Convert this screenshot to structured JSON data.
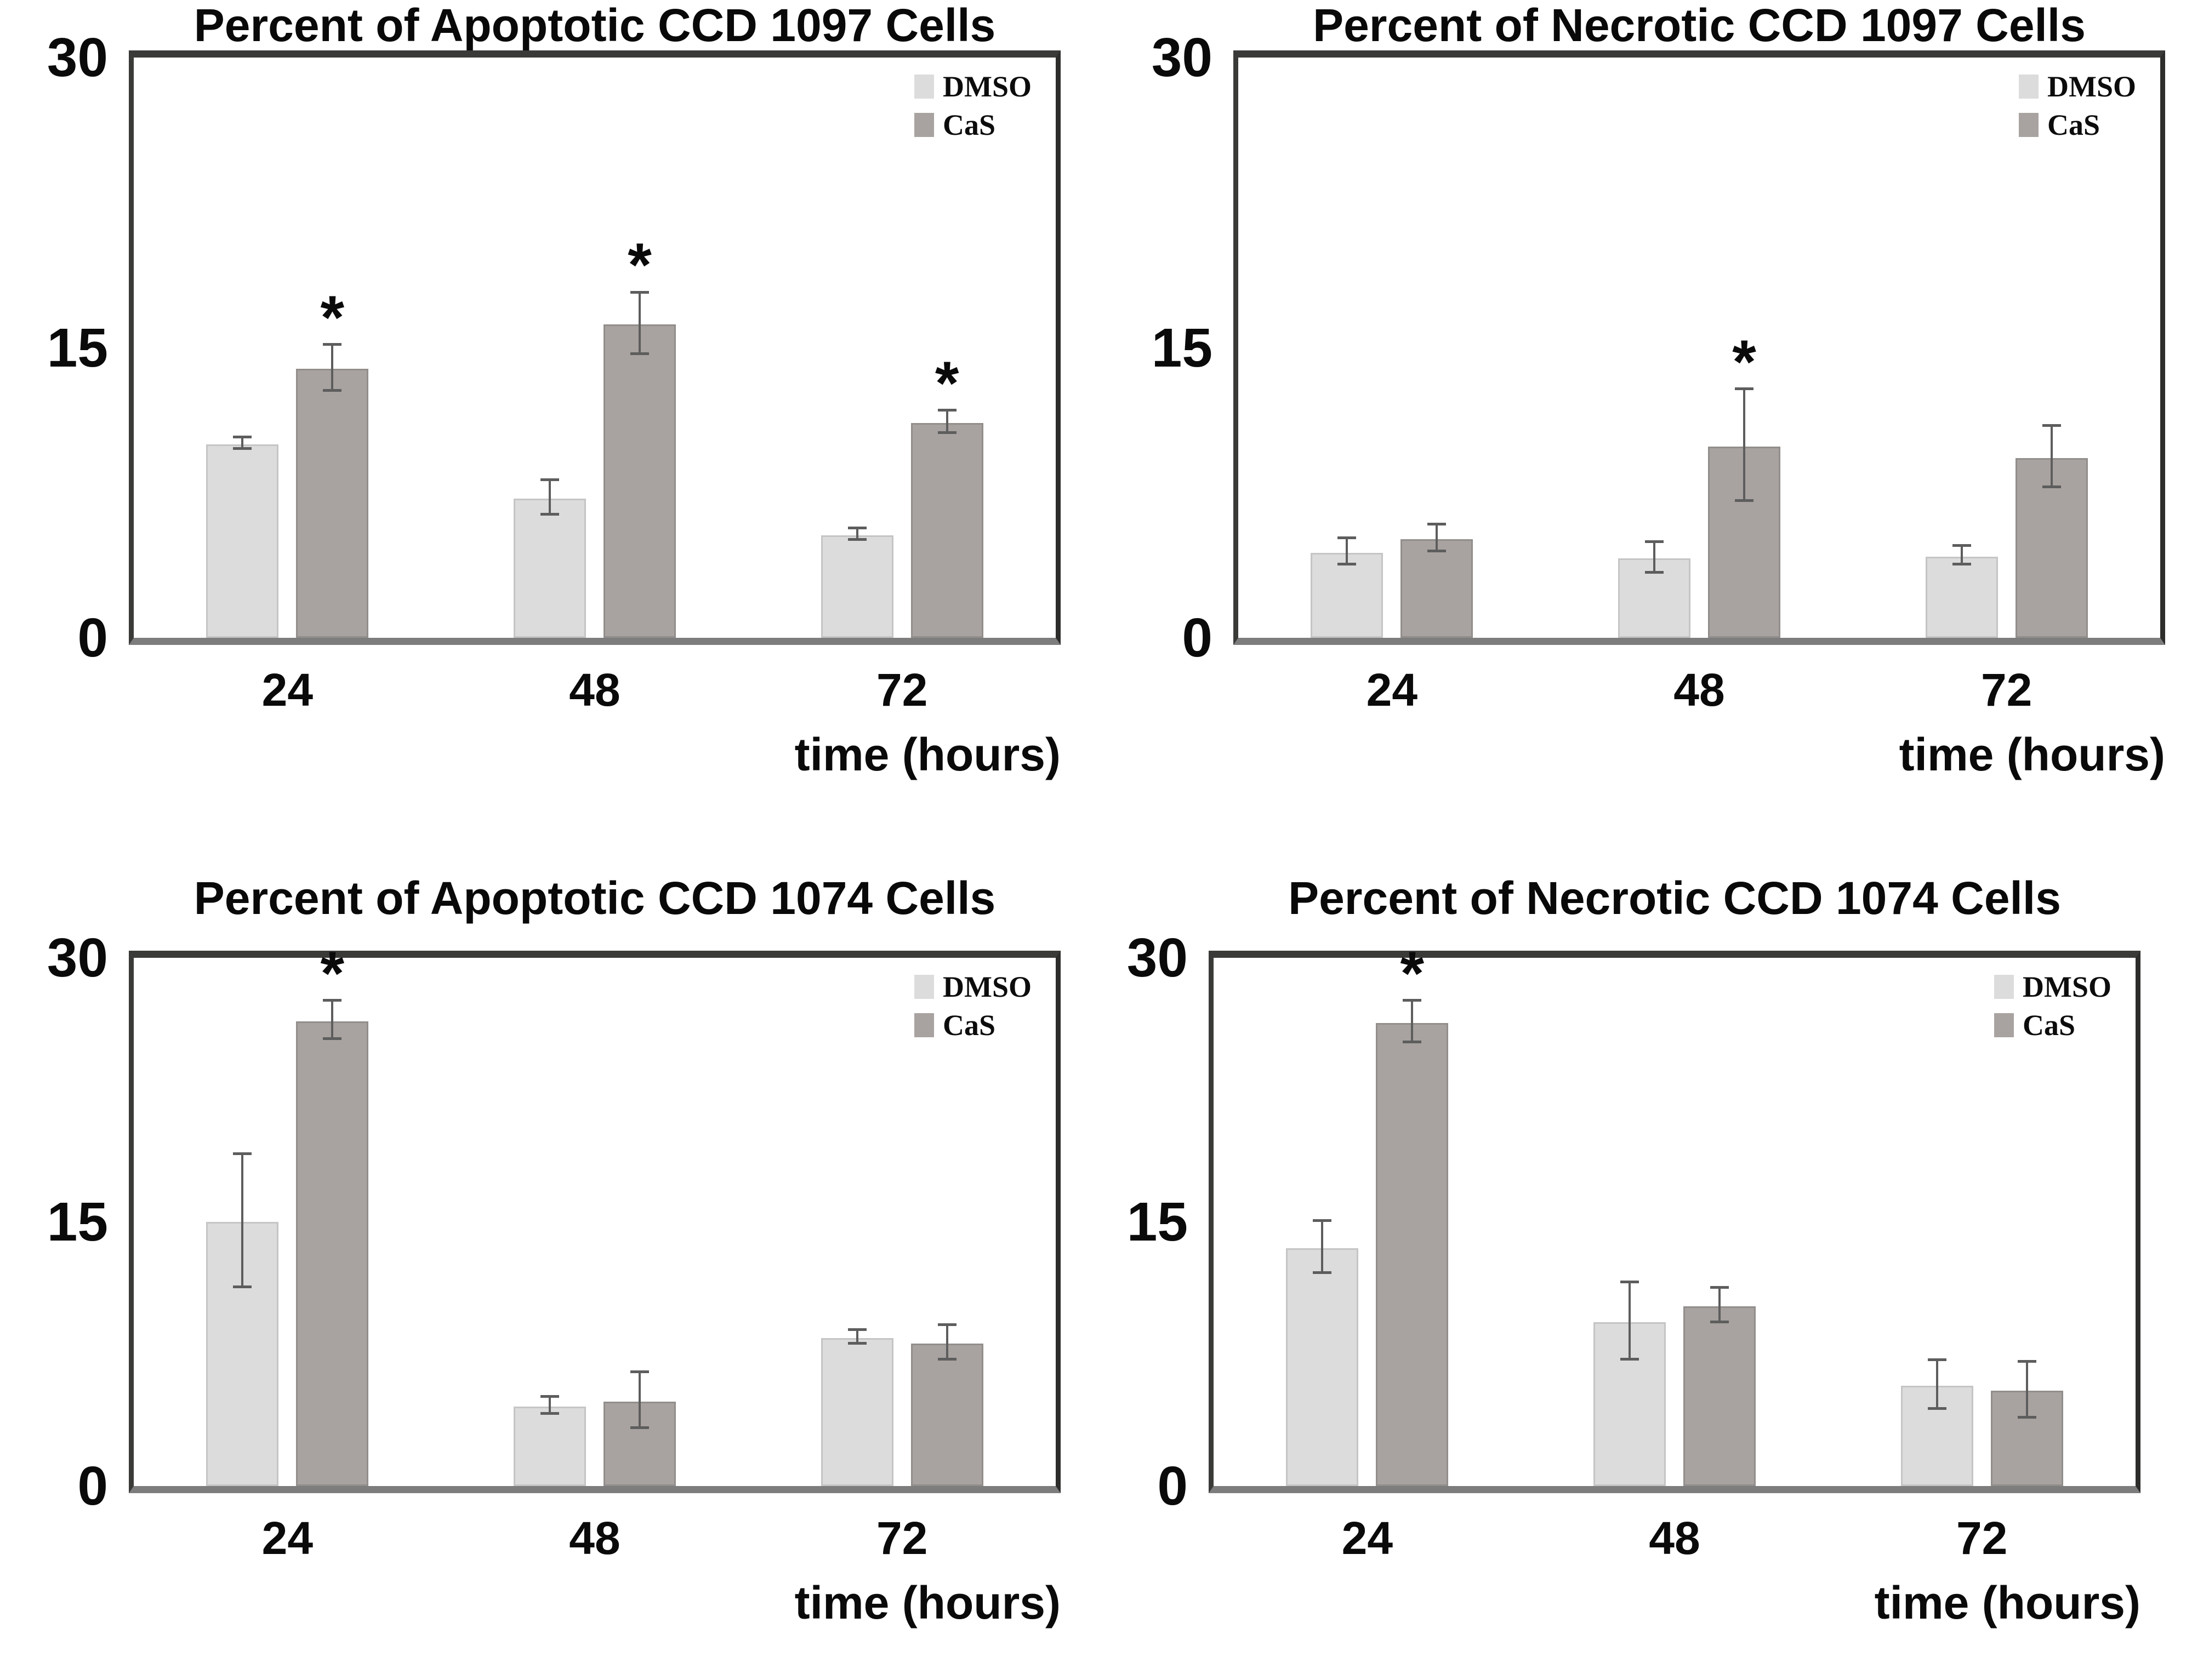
{
  "figure": {
    "significance_marker": "*",
    "colors": {
      "dmso_bar": "#dcdcdc",
      "dmso_edge": "#c5c5c5",
      "cas_bar": "#a8a3a0",
      "cas_edge": "#928e8b",
      "frame": "#3a3a38",
      "baseline": "#7d7d7d",
      "error_bar": "#5d5d5d",
      "text": "#0a0a0a"
    }
  },
  "chart_data": [
    {
      "type": "bar",
      "title": "Percent of Apoptotic CCD 1097 Cells",
      "categories": [
        "24",
        "48",
        "72"
      ],
      "xlabel": "time (hours)",
      "ylim": [
        0,
        30
      ],
      "yticks": [
        0,
        15,
        30
      ],
      "grid": false,
      "legend_position": "top-right",
      "series": [
        {
          "name": "DMSO",
          "values": [
            10.0,
            7.2,
            5.3
          ],
          "errors": [
            0.3,
            0.9,
            0.3
          ]
        },
        {
          "name": "CaS",
          "values": [
            13.9,
            16.2,
            11.1
          ],
          "errors": [
            1.2,
            1.6,
            0.6
          ]
        }
      ],
      "cas_significant": [
        true,
        true,
        true
      ]
    },
    {
      "type": "bar",
      "title": "Percent of Necrotic CCD 1097 Cells",
      "categories": [
        "24",
        "48",
        "72"
      ],
      "xlabel": "time (hours)",
      "ylim": [
        0,
        30
      ],
      "yticks": [
        0,
        15,
        30
      ],
      "grid": false,
      "legend_position": "top-right",
      "series": [
        {
          "name": "DMSO",
          "values": [
            4.4,
            4.1,
            4.2
          ],
          "errors": [
            0.7,
            0.8,
            0.5
          ]
        },
        {
          "name": "CaS",
          "values": [
            5.1,
            9.9,
            9.3
          ],
          "errors": [
            0.7,
            2.9,
            1.6
          ]
        }
      ],
      "cas_significant": [
        false,
        true,
        false
      ]
    },
    {
      "type": "bar",
      "title": "Percent of Apoptotic CCD 1074 Cells",
      "categories": [
        "24",
        "48",
        "72"
      ],
      "xlabel": "time (hours)",
      "ylim": [
        0,
        30
      ],
      "yticks": [
        0,
        15,
        30
      ],
      "grid": false,
      "legend_position": "top-right",
      "series": [
        {
          "name": "DMSO",
          "values": [
            15.0,
            4.5,
            8.4
          ],
          "errors": [
            3.8,
            0.5,
            0.4
          ]
        },
        {
          "name": "CaS",
          "values": [
            26.4,
            4.8,
            8.1
          ],
          "errors": [
            1.1,
            1.6,
            1.0
          ]
        }
      ],
      "cas_significant": [
        true,
        false,
        false
      ]
    },
    {
      "type": "bar",
      "title": "Percent of Necrotic CCD 1074 Cells",
      "categories": [
        "24",
        "48",
        "72"
      ],
      "xlabel": "time (hours)",
      "ylim": [
        0,
        30
      ],
      "yticks": [
        0,
        15,
        30
      ],
      "grid": false,
      "legend_position": "top-right",
      "series": [
        {
          "name": "DMSO",
          "values": [
            13.5,
            9.3,
            5.7
          ],
          "errors": [
            1.5,
            2.2,
            1.4
          ]
        },
        {
          "name": "CaS",
          "values": [
            26.3,
            10.2,
            5.4
          ],
          "errors": [
            1.2,
            1.0,
            1.6
          ]
        }
      ],
      "cas_significant": [
        true,
        false,
        false
      ]
    }
  ]
}
